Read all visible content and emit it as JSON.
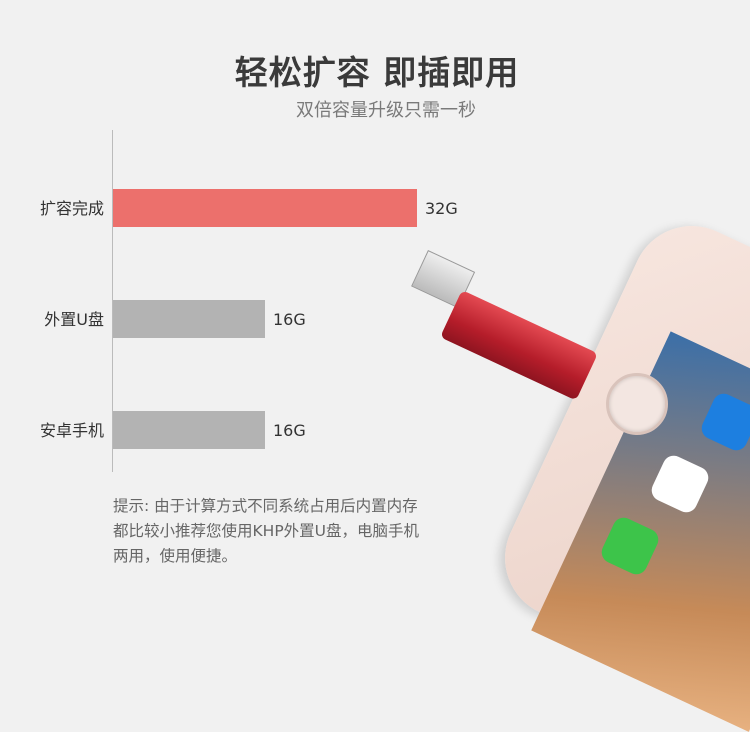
{
  "header": {
    "title": "轻松扩容 即插即用",
    "subtitle": "双倍容量升级只需一秒"
  },
  "chart_data": {
    "type": "bar",
    "orientation": "horizontal",
    "categories": [
      "扩容完成",
      "外置U盘",
      "安卓手机"
    ],
    "values": [
      32,
      16,
      16
    ],
    "data_labels": [
      "32G",
      "16G",
      "16G"
    ],
    "unit": "G",
    "colors": [
      "#ec706c",
      "#b3b3b3",
      "#b3b3b3"
    ],
    "grid": false
  },
  "note": {
    "lines": [
      "提示: 由于计算方式不同系统占用后内置内存",
      "都比较小推荐您使用KHP外置U盘，电脑手机",
      "两用，使用便捷。"
    ]
  }
}
